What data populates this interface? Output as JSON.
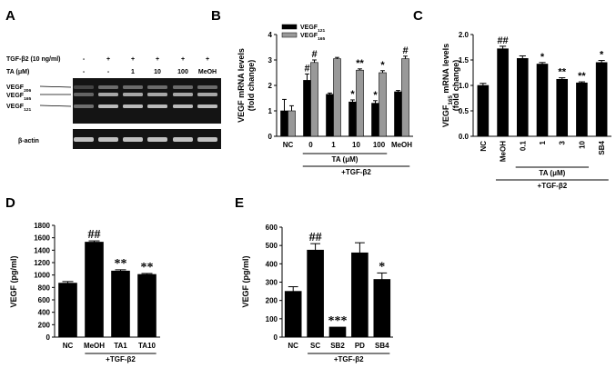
{
  "panels": {
    "A": {
      "letter": "A",
      "treatment_label": "TGF-β2 (10 ng/ml)",
      "ta_label": "TA (μM)",
      "treatment_row": [
        "-",
        "+",
        "+",
        "+",
        "+",
        "+"
      ],
      "ta_row": [
        "-",
        "-",
        "1",
        "10",
        "100",
        "MeOH"
      ],
      "bands": [
        "VEGF206",
        "VEGF165",
        "VEGF121"
      ],
      "band_display": [
        {
          "base": "VEGF",
          "sub": "206"
        },
        {
          "base": "VEGF",
          "sub": "165"
        },
        {
          "base": "VEGF",
          "sub": "121"
        }
      ],
      "actin_label": "β-actin"
    },
    "B": {
      "letter": "B"
    },
    "C": {
      "letter": "C"
    },
    "D": {
      "letter": "D"
    },
    "E": {
      "letter": "E"
    }
  },
  "chart_data": [
    {
      "panel": "B",
      "type": "bar",
      "categories": [
        "NC",
        "0",
        "1",
        "10",
        "100",
        "MeOH"
      ],
      "series": [
        {
          "name": "VEGF121",
          "color": "#000000",
          "values": [
            1.0,
            2.2,
            1.65,
            1.35,
            1.3,
            1.75
          ],
          "errors": [
            0.45,
            0.25,
            0.05,
            0.08,
            0.1,
            0.05
          ],
          "significance": [
            "",
            "#",
            "",
            "*",
            "*",
            ""
          ]
        },
        {
          "name": "VEGF165",
          "color": "#999999",
          "values": [
            1.0,
            2.9,
            3.05,
            2.6,
            2.5,
            3.05
          ],
          "errors": [
            0.2,
            0.1,
            0.05,
            0.05,
            0.08,
            0.1
          ],
          "significance": [
            "",
            "#",
            "",
            "**",
            "*",
            "#"
          ]
        }
      ],
      "legend": [
        {
          "base": "VEGF",
          "sub": "121"
        },
        {
          "base": "VEGF",
          "sub": "165"
        }
      ],
      "ylabel_lines": [
        "VEGF mRNA levels",
        "(fold change)"
      ],
      "yticks": [
        0,
        1,
        2,
        3,
        4
      ],
      "ylim": [
        0,
        4
      ],
      "group_labels": [
        {
          "text": "TA (μM)",
          "from": 1,
          "to": 4
        },
        {
          "text": "+TGF-β2",
          "from": 1,
          "to": 5
        }
      ]
    },
    {
      "panel": "C",
      "type": "bar",
      "categories": [
        "NC",
        "MeOH",
        "0.1",
        "1",
        "3",
        "10",
        "SB4"
      ],
      "values": [
        1.0,
        1.72,
        1.53,
        1.42,
        1.12,
        1.05,
        1.45
      ],
      "errors": [
        0.04,
        0.05,
        0.05,
        0.03,
        0.03,
        0.02,
        0.04
      ],
      "significance": [
        "",
        "##",
        "",
        "*",
        "**",
        "**",
        "*"
      ],
      "ylabel_base": "VEGF",
      "ylabel_sub": "165",
      "ylabel_rest": " mRNA levels",
      "ylabel_line2": "(fold change)",
      "yticks": [
        "0.0",
        "0.5",
        "1.0",
        "1.5",
        "2.0"
      ],
      "ylim": [
        0,
        2
      ],
      "group_labels": [
        {
          "text": "TA (μM)",
          "from": 2,
          "to": 5
        },
        {
          "text": "+TGF-β2",
          "from": 1,
          "to": 6
        }
      ]
    },
    {
      "panel": "D",
      "type": "bar",
      "categories": [
        "NC",
        "MeOH",
        "TA1",
        "TA10"
      ],
      "values": [
        870,
        1530,
        1065,
        1010
      ],
      "errors": [
        25,
        20,
        20,
        15
      ],
      "significance": [
        "",
        "##",
        "**",
        "**"
      ],
      "ylabel": "VEGF (pg/ml)",
      "yticks": [
        0,
        200,
        400,
        600,
        800,
        1000,
        1200,
        1400,
        1600,
        1800
      ],
      "ylim": [
        0,
        1800
      ],
      "group_labels": [
        {
          "text": "+TGF-β2",
          "from": 1,
          "to": 3
        }
      ]
    },
    {
      "panel": "E",
      "type": "bar",
      "categories": [
        "NC",
        "SC",
        "SB2",
        "PD",
        "SB4"
      ],
      "values": [
        250,
        475,
        55,
        460,
        315
      ],
      "errors": [
        25,
        35,
        0,
        55,
        35
      ],
      "significance": [
        "",
        "##",
        "***",
        "",
        "*"
      ],
      "ylabel": "VEGF (pg/ml)",
      "yticks": [
        0,
        100,
        200,
        300,
        400,
        500,
        600
      ],
      "ylim": [
        0,
        600
      ],
      "group_labels": [
        {
          "text": "+TGF-β2",
          "from": 1,
          "to": 4
        }
      ]
    }
  ]
}
